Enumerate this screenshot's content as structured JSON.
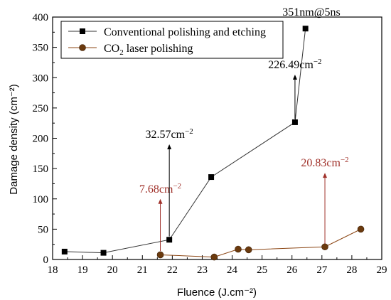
{
  "chart_data": {
    "type": "line",
    "title": "351nm@5ns",
    "xlabel": "Fluence (J.cm⁻²)",
    "ylabel": "Damage density (cm⁻²)",
    "xlim": [
      18,
      29
    ],
    "ylim": [
      0,
      400
    ],
    "xticks": [
      "18",
      "19",
      "20",
      "21",
      "22",
      "23",
      "24",
      "25",
      "26",
      "27",
      "28",
      "29"
    ],
    "yticks": [
      "0",
      "50",
      "100",
      "150",
      "200",
      "250",
      "300",
      "350",
      "400"
    ],
    "legend_position": "top-left",
    "series": [
      {
        "name": "Conventional polishing and etching",
        "marker": "square",
        "color": "#000000",
        "line_color": "#333333",
        "points": [
          [
            18.4,
            13
          ],
          [
            19.7,
            11
          ],
          [
            21.9,
            32.57
          ],
          [
            23.3,
            136
          ],
          [
            26.1,
            226.49
          ],
          [
            26.45,
            381
          ]
        ]
      },
      {
        "name_main": "CO",
        "name_sub": "2",
        "name_rest": " laser polishing",
        "marker": "circle",
        "color": "#6b3a0e",
        "line_color": "#8b4513",
        "points": [
          [
            21.6,
            7.68
          ],
          [
            23.4,
            4
          ],
          [
            24.2,
            17
          ],
          [
            24.55,
            16
          ],
          [
            27.1,
            20.83
          ],
          [
            28.3,
            50
          ]
        ]
      }
    ],
    "annotations": [
      {
        "base": "7.68cm",
        "sup": "−2",
        "color": "#a0312a",
        "arrow_x": 21.6,
        "arrow_from": 14,
        "arrow_to": 100
      },
      {
        "base": "32.57cm",
        "sup": "−2",
        "color": "#000000",
        "arrow_x": 21.9,
        "arrow_from": 38,
        "arrow_to": 190
      },
      {
        "base": "226.49cm",
        "sup": "−2",
        "color": "#000000",
        "arrow_x": 26.1,
        "arrow_from": 232,
        "arrow_to": 305
      },
      {
        "base": "20.83cm",
        "sup": "−2",
        "color": "#a0312a",
        "arrow_x": 27.1,
        "arrow_from": 26,
        "arrow_to": 143
      }
    ]
  }
}
